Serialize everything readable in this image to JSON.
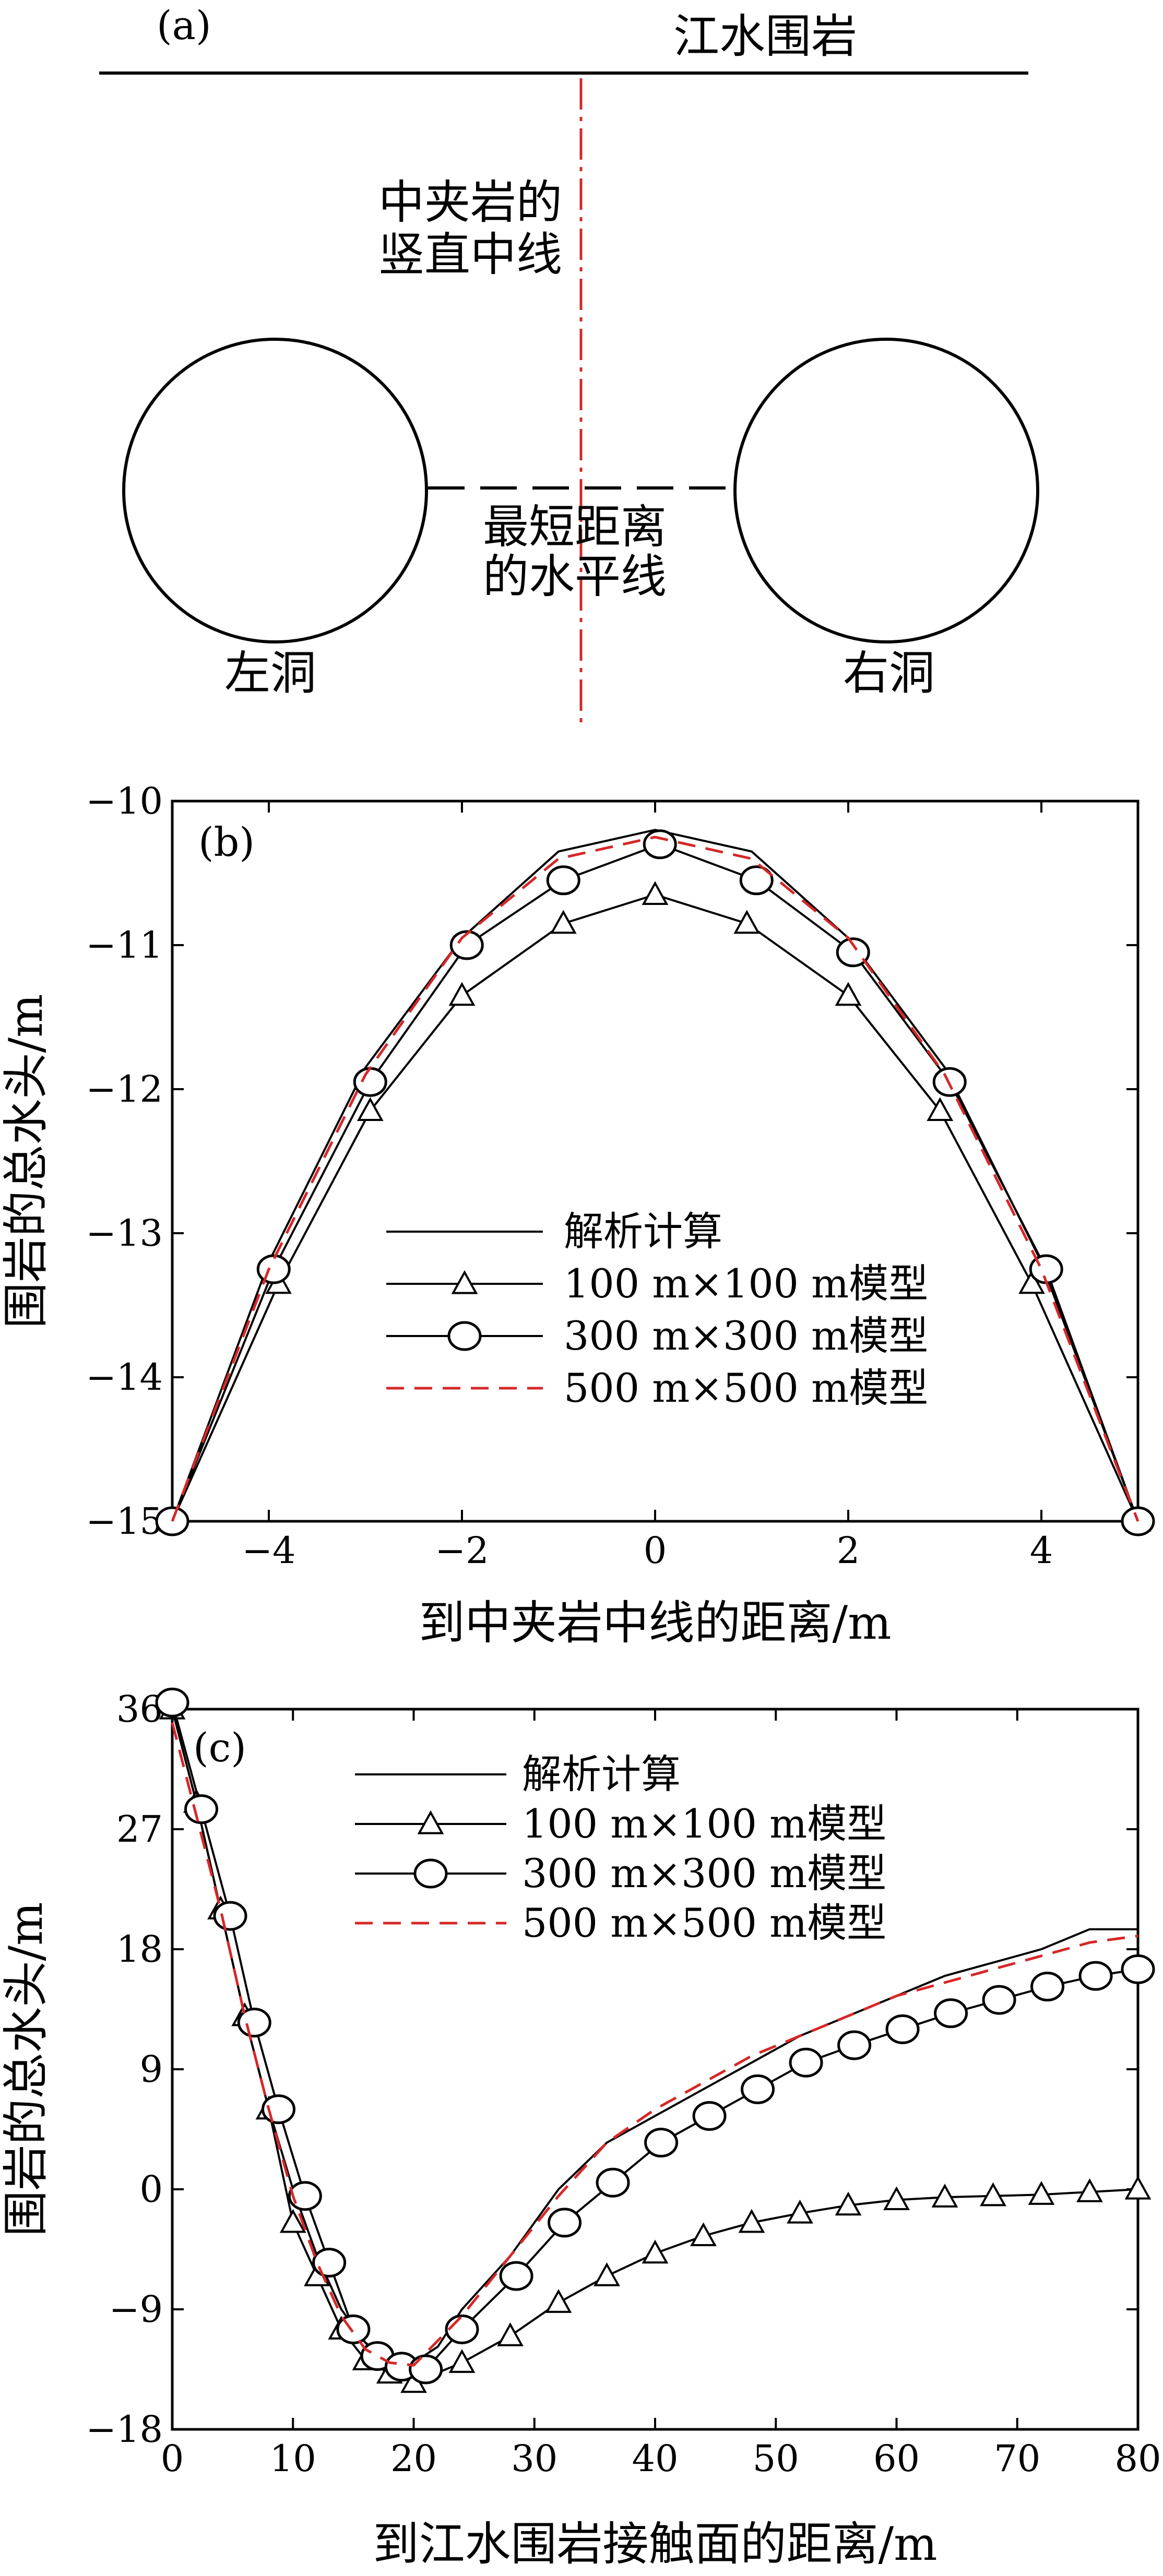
{
  "schematic": {
    "panel_label": "(a)",
    "top_label": "江水围岩",
    "vertical_label_line1": "中夹岩的",
    "vertical_label_line2": "竖直中线",
    "horizontal_label_line1": "最短距离",
    "horizontal_label_line2": "的水平线",
    "left_tunnel_label": "左洞",
    "right_tunnel_label": "右洞",
    "colors": {
      "line": "#000000",
      "centerline": "#d62728"
    }
  },
  "chart_data": [
    {
      "panel_label": "(b)",
      "type": "line",
      "xlabel": "到中夹岩中线的距离/m",
      "ylabel": "围岩的总水头/m",
      "xlim": [
        -5,
        5
      ],
      "ylim": [
        -15,
        -10
      ],
      "xticks": [
        -4,
        -2,
        0,
        2,
        4
      ],
      "xtick_labels": [
        "−4",
        "−2",
        "0",
        "2",
        "4"
      ],
      "yticks": [
        -15,
        -14,
        -13,
        -12,
        -11,
        -10
      ],
      "ytick_labels": [
        "−15",
        "−14",
        "−13",
        "−12",
        "−11",
        "−10"
      ],
      "legend_position": "center",
      "series": [
        {
          "name": "解析计算",
          "style": "solid",
          "marker": "none",
          "color": "#000000",
          "x": [
            -5,
            -4,
            -3,
            -2,
            -1,
            0,
            1,
            2,
            3,
            4,
            5
          ],
          "y": [
            -15,
            -13.2,
            -11.85,
            -10.95,
            -10.35,
            -10.2,
            -10.35,
            -10.95,
            -11.85,
            -13.2,
            -15
          ]
        },
        {
          "name": "100 m×100 m模型",
          "style": "solid",
          "marker": "triangle",
          "color": "#000000",
          "x": [
            -5,
            -3.9,
            -2.95,
            -2,
            -0.95,
            0,
            0.95,
            2,
            2.95,
            3.9,
            5
          ],
          "y": [
            -15,
            -13.35,
            -12.15,
            -11.35,
            -10.85,
            -10.65,
            -10.85,
            -11.35,
            -12.15,
            -13.35,
            -15
          ]
        },
        {
          "name": "300 m×300 m模型",
          "style": "solid",
          "marker": "circle",
          "color": "#000000",
          "x": [
            -5,
            -3.95,
            -2.95,
            -1.95,
            -0.95,
            0.05,
            1.05,
            2.05,
            3.05,
            4.05,
            5
          ],
          "y": [
            -15,
            -13.25,
            -11.95,
            -11.0,
            -10.55,
            -10.3,
            -10.55,
            -11.05,
            -11.95,
            -13.25,
            -15
          ]
        },
        {
          "name": "500 m×500 m模型",
          "style": "dashed",
          "marker": "none",
          "color": "#d62728",
          "x": [
            -5,
            -4,
            -3,
            -2,
            -1,
            0,
            1,
            2,
            3,
            4,
            5
          ],
          "y": [
            -15,
            -13.25,
            -11.9,
            -10.95,
            -10.4,
            -10.25,
            -10.4,
            -10.95,
            -11.9,
            -13.25,
            -15
          ]
        }
      ]
    },
    {
      "panel_label": "(c)",
      "type": "line",
      "xlabel": "到江水围岩接触面的距离/m",
      "ylabel": "围岩的总水头/m",
      "xlim": [
        0,
        80
      ],
      "ylim": [
        -18,
        36
      ],
      "xticks": [
        0,
        10,
        20,
        30,
        40,
        50,
        60,
        70,
        80
      ],
      "xtick_labels": [
        "0",
        "10",
        "20",
        "30",
        "40",
        "50",
        "60",
        "70",
        "80"
      ],
      "yticks": [
        -18,
        -9,
        0,
        9,
        18,
        27,
        36
      ],
      "ytick_labels": [
        "−18",
        "−9",
        "0",
        "9",
        "18",
        "27",
        "36"
      ],
      "legend_position": "upper-center",
      "series": [
        {
          "name": "解析计算",
          "style": "solid",
          "marker": "none",
          "color": "#000000",
          "x": [
            0,
            2,
            4,
            6,
            8,
            10,
            12,
            14,
            16,
            18,
            20,
            22,
            24,
            28,
            32,
            36,
            40,
            44,
            48,
            52,
            56,
            60,
            64,
            68,
            72,
            76,
            80
          ],
          "y": [
            36,
            29,
            21,
            13,
            6,
            0,
            -5,
            -9,
            -11.5,
            -12.8,
            -13,
            -11.8,
            -9,
            -5,
            0,
            3.5,
            5.5,
            7.5,
            9.5,
            11.5,
            13,
            14.5,
            16,
            17,
            18,
            19.5,
            19.5
          ]
        },
        {
          "name": "100 m×100 m模型",
          "style": "solid",
          "marker": "triangle",
          "color": "#000000",
          "x": [
            0,
            2,
            4,
            6,
            8,
            10,
            12,
            14,
            16,
            18,
            20,
            24,
            28,
            32,
            36,
            40,
            44,
            48,
            52,
            56,
            60,
            64,
            68,
            72,
            76,
            80
          ],
          "y": [
            36,
            29,
            21,
            13,
            6,
            -2.5,
            -6.5,
            -10.5,
            -12.8,
            -13.8,
            -14.5,
            -13,
            -11,
            -8.5,
            -6.5,
            -4.8,
            -3.5,
            -2.5,
            -1.8,
            -1.2,
            -0.8,
            -0.6,
            -0.5,
            -0.4,
            -0.2,
            0
          ]
        },
        {
          "name": "300 m×300 m模型",
          "style": "solid",
          "marker": "circle",
          "color": "#000000",
          "x": [
            0,
            2.4,
            4.8,
            6.8,
            8.8,
            11,
            13,
            15,
            17,
            19,
            21,
            24,
            28.5,
            32.5,
            36.5,
            40.5,
            44.5,
            48.5,
            52.5,
            56.5,
            60.5,
            64.5,
            68.5,
            72.5,
            76.5,
            80
          ],
          "y": [
            36.5,
            28.5,
            20.5,
            12.5,
            6,
            -0.5,
            -5.5,
            -10.5,
            -12.5,
            -13.3,
            -13.5,
            -10.5,
            -6.5,
            -2.5,
            0.5,
            3.5,
            5.5,
            7.5,
            9.5,
            10.8,
            12,
            13.2,
            14.2,
            15.2,
            16,
            16.5
          ]
        },
        {
          "name": "500 m×500 m模型",
          "style": "dashed",
          "marker": "none",
          "color": "#d62728",
          "x": [
            0,
            2,
            4,
            6,
            8,
            10,
            12,
            14,
            16,
            18,
            20,
            24,
            28,
            32,
            36,
            40,
            44,
            48,
            52,
            56,
            60,
            64,
            68,
            72,
            76,
            80
          ],
          "y": [
            35,
            28,
            21,
            13,
            6,
            -0.5,
            -5.5,
            -9.5,
            -12,
            -13,
            -13.2,
            -9.5,
            -5,
            -0.5,
            3.5,
            6,
            8,
            10,
            11.5,
            13,
            14.5,
            15.5,
            16.5,
            17.5,
            18.5,
            19
          ]
        }
      ]
    }
  ]
}
